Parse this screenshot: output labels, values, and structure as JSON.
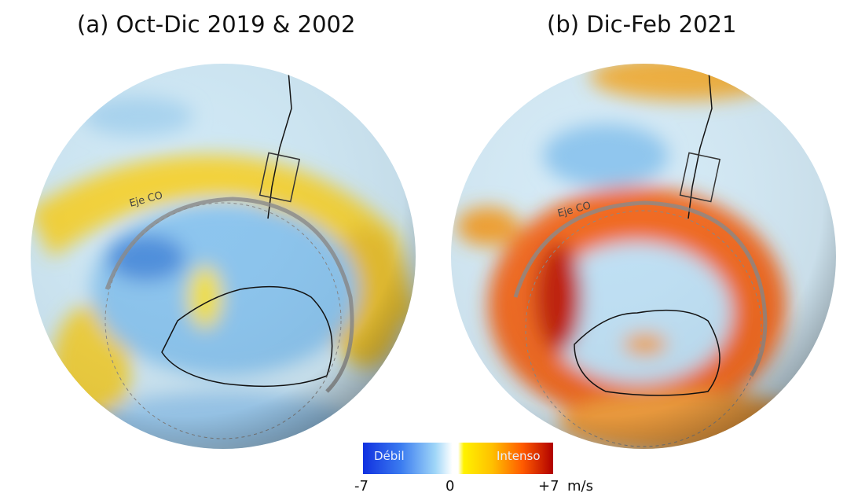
{
  "panels": [
    {
      "title": "(a) Oct-Dic 2019 & 2002",
      "axis_label": "Eje CO",
      "anomaly": "weak"
    },
    {
      "title": "(b) Dic-Feb 2021",
      "axis_label": "Eje CO",
      "anomaly": "strong"
    }
  ],
  "colorbar": {
    "weak_label": "Débil",
    "strong_label": "Intenso",
    "min_label": "-7",
    "mid_label": "0",
    "max_label": "+7",
    "unit": "m/s",
    "colors": {
      "min": "#1030e0",
      "mid": "#ffffff",
      "yellow": "#fff200",
      "max": "#b00000"
    }
  }
}
